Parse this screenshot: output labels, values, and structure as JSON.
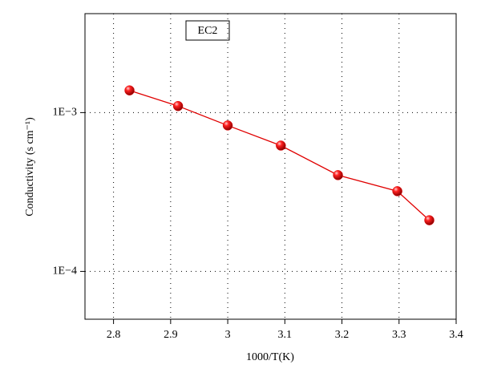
{
  "chart_data": {
    "type": "line",
    "annotation": "EC2",
    "xlabel": "1000/T(K)",
    "ylabel": "Conductivity (s cm⁻¹)",
    "x": [
      2.828,
      2.913,
      3.0,
      3.093,
      3.193,
      3.297,
      3.353
    ],
    "series": [
      {
        "color": "#e00000",
        "values": [
          0.00138,
          0.0011,
          0.00083,
          0.00062,
          0.000404,
          0.00032,
          0.00021
        ]
      }
    ],
    "xlim": [
      2.75,
      3.4
    ],
    "xticks": [
      2.8,
      2.9,
      3.0,
      3.1,
      3.2,
      3.3,
      3.4
    ],
    "ylim": [
      5e-05,
      0.0042
    ],
    "yticks": [
      {
        "value": 0.0001,
        "label": "1E−4"
      },
      {
        "value": 0.001,
        "label": "1E−3"
      }
    ],
    "log_y": true,
    "grid": true
  }
}
